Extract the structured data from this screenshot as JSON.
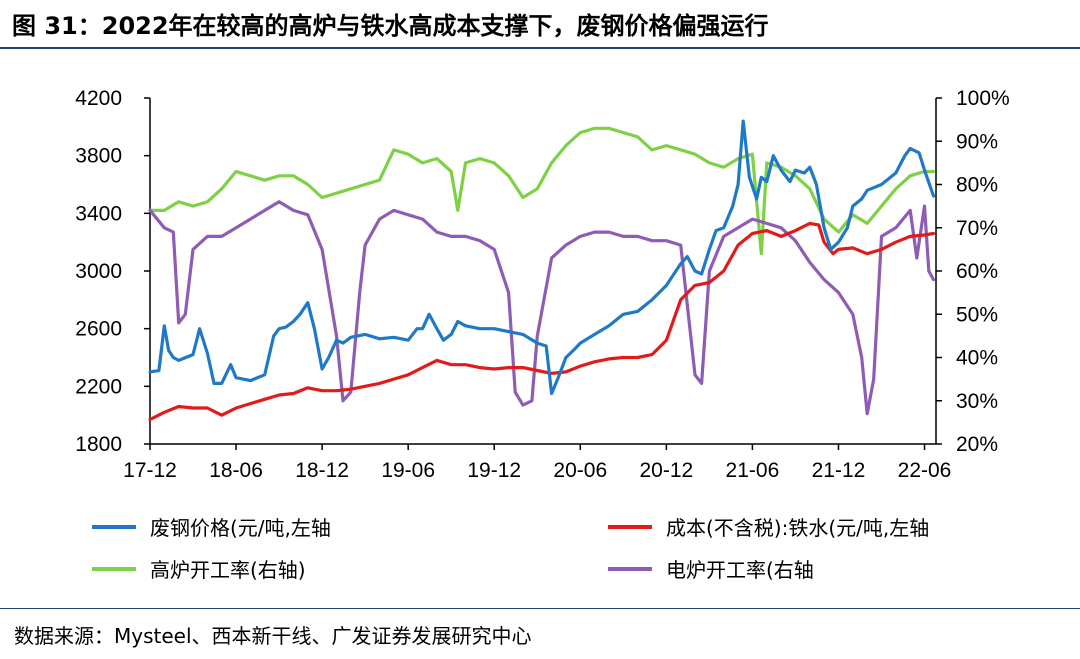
{
  "title": "图 31：2022年在较高的高炉与铁水高成本支撑下，废钢价格偏强运行",
  "source": "数据来源：Mysteel、西本新干线、广发证券发展研究中心",
  "chart_data": {
    "type": "line",
    "x_ticks": [
      "17-12",
      "18-06",
      "18-12",
      "19-06",
      "19-12",
      "20-06",
      "20-12",
      "21-06",
      "21-12",
      "22-06"
    ],
    "x_range": [
      "2017-12",
      "2022-07"
    ],
    "y_left": {
      "min": 1800,
      "max": 4200,
      "step": 400,
      "ticks": [
        "1800",
        "2200",
        "2600",
        "3000",
        "3400",
        "3800",
        "4200"
      ]
    },
    "y_right": {
      "min": 20,
      "max": 100,
      "step": 10,
      "ticks": [
        "20%",
        "30%",
        "40%",
        "50%",
        "60%",
        "70%",
        "80%",
        "90%",
        "100%"
      ]
    },
    "grid": false,
    "legend_position": "bottom",
    "series": [
      {
        "name": "废钢价格(元/吨,左轴",
        "axis": "left",
        "color": "#1f78c8",
        "points": [
          [
            "2017-12-01",
            2300
          ],
          [
            "2017-12-20",
            2310
          ],
          [
            "2018-01-01",
            2620
          ],
          [
            "2018-01-10",
            2450
          ],
          [
            "2018-01-20",
            2400
          ],
          [
            "2018-02-01",
            2380
          ],
          [
            "2018-03-01",
            2420
          ],
          [
            "2018-03-15",
            2600
          ],
          [
            "2018-04-01",
            2430
          ],
          [
            "2018-04-15",
            2220
          ],
          [
            "2018-05-01",
            2220
          ],
          [
            "2018-05-20",
            2350
          ],
          [
            "2018-06-01",
            2260
          ],
          [
            "2018-07-01",
            2240
          ],
          [
            "2018-08-01",
            2280
          ],
          [
            "2018-08-20",
            2550
          ],
          [
            "2018-09-01",
            2600
          ],
          [
            "2018-09-15",
            2610
          ],
          [
            "2018-10-01",
            2650
          ],
          [
            "2018-10-15",
            2700
          ],
          [
            "2018-11-01",
            2780
          ],
          [
            "2018-11-15",
            2600
          ],
          [
            "2018-12-01",
            2320
          ],
          [
            "2018-12-15",
            2400
          ],
          [
            "2019-01-01",
            2520
          ],
          [
            "2019-01-15",
            2500
          ],
          [
            "2019-02-01",
            2540
          ],
          [
            "2019-03-01",
            2560
          ],
          [
            "2019-04-01",
            2530
          ],
          [
            "2019-05-01",
            2540
          ],
          [
            "2019-06-01",
            2520
          ],
          [
            "2019-06-20",
            2600
          ],
          [
            "2019-07-01",
            2600
          ],
          [
            "2019-07-15",
            2700
          ],
          [
            "2019-08-01",
            2600
          ],
          [
            "2019-08-15",
            2520
          ],
          [
            "2019-09-01",
            2560
          ],
          [
            "2019-09-15",
            2650
          ],
          [
            "2019-10-01",
            2620
          ],
          [
            "2019-11-01",
            2600
          ],
          [
            "2019-12-01",
            2600
          ],
          [
            "2020-01-01",
            2580
          ],
          [
            "2020-02-01",
            2560
          ],
          [
            "2020-03-01",
            2500
          ],
          [
            "2020-03-20",
            2480
          ],
          [
            "2020-04-01",
            2150
          ],
          [
            "2020-04-15",
            2260
          ],
          [
            "2020-05-01",
            2400
          ],
          [
            "2020-05-20",
            2460
          ],
          [
            "2020-06-01",
            2500
          ],
          [
            "2020-07-01",
            2560
          ],
          [
            "2020-08-01",
            2620
          ],
          [
            "2020-09-01",
            2700
          ],
          [
            "2020-10-01",
            2720
          ],
          [
            "2020-11-01",
            2800
          ],
          [
            "2020-12-01",
            2900
          ],
          [
            "2021-01-01",
            3050
          ],
          [
            "2021-01-15",
            3100
          ],
          [
            "2021-02-01",
            3000
          ],
          [
            "2021-02-15",
            2980
          ],
          [
            "2021-03-01",
            3150
          ],
          [
            "2021-03-15",
            3280
          ],
          [
            "2021-04-01",
            3300
          ],
          [
            "2021-04-20",
            3450
          ],
          [
            "2021-05-01",
            3600
          ],
          [
            "2021-05-12",
            4040
          ],
          [
            "2021-05-25",
            3650
          ],
          [
            "2021-06-10",
            3500
          ],
          [
            "2021-06-20",
            3650
          ],
          [
            "2021-07-01",
            3620
          ],
          [
            "2021-07-15",
            3800
          ],
          [
            "2021-08-01",
            3700
          ],
          [
            "2021-08-20",
            3620
          ],
          [
            "2021-09-01",
            3700
          ],
          [
            "2021-09-20",
            3680
          ],
          [
            "2021-10-01",
            3720
          ],
          [
            "2021-10-15",
            3600
          ],
          [
            "2021-11-01",
            3300
          ],
          [
            "2021-11-15",
            3150
          ],
          [
            "2021-12-01",
            3200
          ],
          [
            "2021-12-20",
            3300
          ],
          [
            "2022-01-01",
            3450
          ],
          [
            "2022-01-20",
            3500
          ],
          [
            "2022-02-01",
            3560
          ],
          [
            "2022-03-01",
            3600
          ],
          [
            "2022-04-01",
            3680
          ],
          [
            "2022-04-20",
            3800
          ],
          [
            "2022-05-01",
            3850
          ],
          [
            "2022-05-20",
            3820
          ],
          [
            "2022-06-01",
            3700
          ],
          [
            "2022-06-20",
            3520
          ]
        ]
      },
      {
        "name": "成本(不含税):铁水(元/吨,左轴",
        "axis": "left",
        "color": "#e21a1a",
        "points": [
          [
            "2017-12-01",
            1970
          ],
          [
            "2018-01-01",
            2020
          ],
          [
            "2018-02-01",
            2060
          ],
          [
            "2018-03-01",
            2050
          ],
          [
            "2018-04-01",
            2050
          ],
          [
            "2018-05-01",
            2000
          ],
          [
            "2018-06-01",
            2050
          ],
          [
            "2018-07-01",
            2080
          ],
          [
            "2018-08-01",
            2110
          ],
          [
            "2018-09-01",
            2140
          ],
          [
            "2018-10-01",
            2150
          ],
          [
            "2018-11-01",
            2190
          ],
          [
            "2018-12-01",
            2170
          ],
          [
            "2019-01-01",
            2170
          ],
          [
            "2019-02-01",
            2180
          ],
          [
            "2019-03-01",
            2200
          ],
          [
            "2019-04-01",
            2220
          ],
          [
            "2019-05-01",
            2250
          ],
          [
            "2019-06-01",
            2280
          ],
          [
            "2019-07-01",
            2330
          ],
          [
            "2019-08-01",
            2380
          ],
          [
            "2019-09-01",
            2350
          ],
          [
            "2019-10-01",
            2350
          ],
          [
            "2019-11-01",
            2330
          ],
          [
            "2019-12-01",
            2320
          ],
          [
            "2020-01-01",
            2330
          ],
          [
            "2020-02-01",
            2330
          ],
          [
            "2020-03-01",
            2310
          ],
          [
            "2020-04-01",
            2290
          ],
          [
            "2020-05-01",
            2300
          ],
          [
            "2020-06-01",
            2340
          ],
          [
            "2020-07-01",
            2370
          ],
          [
            "2020-08-01",
            2390
          ],
          [
            "2020-09-01",
            2400
          ],
          [
            "2020-10-01",
            2400
          ],
          [
            "2020-11-01",
            2420
          ],
          [
            "2020-12-01",
            2520
          ],
          [
            "2021-01-01",
            2800
          ],
          [
            "2021-02-01",
            2900
          ],
          [
            "2021-03-01",
            2920
          ],
          [
            "2021-04-01",
            3000
          ],
          [
            "2021-05-01",
            3180
          ],
          [
            "2021-06-01",
            3260
          ],
          [
            "2021-07-01",
            3280
          ],
          [
            "2021-08-01",
            3240
          ],
          [
            "2021-09-01",
            3280
          ],
          [
            "2021-10-01",
            3330
          ],
          [
            "2021-10-20",
            3320
          ],
          [
            "2021-11-01",
            3200
          ],
          [
            "2021-11-20",
            3120
          ],
          [
            "2021-12-01",
            3150
          ],
          [
            "2022-01-01",
            3160
          ],
          [
            "2022-02-01",
            3120
          ],
          [
            "2022-03-01",
            3150
          ],
          [
            "2022-04-01",
            3200
          ],
          [
            "2022-05-01",
            3240
          ],
          [
            "2022-06-01",
            3250
          ],
          [
            "2022-06-20",
            3260
          ]
        ]
      },
      {
        "name": "高炉开工率(右轴)",
        "axis": "right",
        "color": "#7ed044",
        "points": [
          [
            "2017-12-01",
            74
          ],
          [
            "2018-01-01",
            74
          ],
          [
            "2018-02-01",
            76
          ],
          [
            "2018-03-01",
            75
          ],
          [
            "2018-04-01",
            76
          ],
          [
            "2018-05-01",
            79
          ],
          [
            "2018-06-01",
            83
          ],
          [
            "2018-07-01",
            82
          ],
          [
            "2018-08-01",
            81
          ],
          [
            "2018-09-01",
            82
          ],
          [
            "2018-10-01",
            82
          ],
          [
            "2018-11-01",
            80
          ],
          [
            "2018-12-01",
            77
          ],
          [
            "2019-01-01",
            78
          ],
          [
            "2019-02-01",
            79
          ],
          [
            "2019-03-01",
            80
          ],
          [
            "2019-04-01",
            81
          ],
          [
            "2019-05-01",
            88
          ],
          [
            "2019-06-01",
            87
          ],
          [
            "2019-07-01",
            85
          ],
          [
            "2019-08-01",
            86
          ],
          [
            "2019-09-01",
            83
          ],
          [
            "2019-09-15",
            74
          ],
          [
            "2019-10-01",
            85
          ],
          [
            "2019-11-01",
            86
          ],
          [
            "2019-12-01",
            85
          ],
          [
            "2020-01-01",
            82
          ],
          [
            "2020-02-01",
            77
          ],
          [
            "2020-03-01",
            79
          ],
          [
            "2020-04-01",
            85
          ],
          [
            "2020-05-01",
            89
          ],
          [
            "2020-06-01",
            92
          ],
          [
            "2020-07-01",
            93
          ],
          [
            "2020-08-01",
            93
          ],
          [
            "2020-09-01",
            92
          ],
          [
            "2020-10-01",
            91
          ],
          [
            "2020-11-01",
            88
          ],
          [
            "2020-12-01",
            89
          ],
          [
            "2021-01-01",
            88
          ],
          [
            "2021-02-01",
            87
          ],
          [
            "2021-03-01",
            85
          ],
          [
            "2021-04-01",
            84
          ],
          [
            "2021-05-01",
            86
          ],
          [
            "2021-06-01",
            87
          ],
          [
            "2021-06-20",
            64
          ],
          [
            "2021-07-01",
            85
          ],
          [
            "2021-08-01",
            84
          ],
          [
            "2021-09-01",
            82
          ],
          [
            "2021-10-01",
            79
          ],
          [
            "2021-11-01",
            72
          ],
          [
            "2021-12-01",
            69
          ],
          [
            "2022-01-01",
            73
          ],
          [
            "2022-02-01",
            71
          ],
          [
            "2022-03-01",
            75
          ],
          [
            "2022-04-01",
            79
          ],
          [
            "2022-05-01",
            82
          ],
          [
            "2022-06-01",
            83
          ],
          [
            "2022-06-20",
            83
          ]
        ]
      },
      {
        "name": "电炉开工率(右轴",
        "axis": "right",
        "color": "#8e5cb4",
        "points": [
          [
            "2017-12-01",
            74
          ],
          [
            "2018-01-01",
            70
          ],
          [
            "2018-01-20",
            69
          ],
          [
            "2018-02-01",
            48
          ],
          [
            "2018-02-15",
            50
          ],
          [
            "2018-03-01",
            65
          ],
          [
            "2018-04-01",
            68
          ],
          [
            "2018-05-01",
            68
          ],
          [
            "2018-06-01",
            70
          ],
          [
            "2018-07-01",
            72
          ],
          [
            "2018-08-01",
            74
          ],
          [
            "2018-09-01",
            76
          ],
          [
            "2018-10-01",
            74
          ],
          [
            "2018-11-01",
            73
          ],
          [
            "2018-12-01",
            65
          ],
          [
            "2019-01-01",
            45
          ],
          [
            "2019-01-15",
            30
          ],
          [
            "2019-02-01",
            32
          ],
          [
            "2019-02-20",
            55
          ],
          [
            "2019-03-01",
            66
          ],
          [
            "2019-04-01",
            72
          ],
          [
            "2019-05-01",
            74
          ],
          [
            "2019-06-01",
            73
          ],
          [
            "2019-07-01",
            72
          ],
          [
            "2019-08-01",
            69
          ],
          [
            "2019-09-01",
            68
          ],
          [
            "2019-10-01",
            68
          ],
          [
            "2019-11-01",
            67
          ],
          [
            "2019-12-01",
            65
          ],
          [
            "2020-01-01",
            55
          ],
          [
            "2020-01-15",
            32
          ],
          [
            "2020-02-01",
            29
          ],
          [
            "2020-02-20",
            30
          ],
          [
            "2020-03-01",
            45
          ],
          [
            "2020-04-01",
            63
          ],
          [
            "2020-05-01",
            66
          ],
          [
            "2020-06-01",
            68
          ],
          [
            "2020-07-01",
            69
          ],
          [
            "2020-08-01",
            69
          ],
          [
            "2020-09-01",
            68
          ],
          [
            "2020-10-01",
            68
          ],
          [
            "2020-11-01",
            67
          ],
          [
            "2020-12-01",
            67
          ],
          [
            "2021-01-01",
            66
          ],
          [
            "2021-02-01",
            36
          ],
          [
            "2021-02-15",
            34
          ],
          [
            "2021-03-01",
            60
          ],
          [
            "2021-04-01",
            68
          ],
          [
            "2021-05-01",
            70
          ],
          [
            "2021-06-01",
            72
          ],
          [
            "2021-07-01",
            71
          ],
          [
            "2021-08-01",
            70
          ],
          [
            "2021-09-01",
            67
          ],
          [
            "2021-10-01",
            62
          ],
          [
            "2021-11-01",
            58
          ],
          [
            "2021-12-01",
            55
          ],
          [
            "2022-01-01",
            50
          ],
          [
            "2022-01-20",
            40
          ],
          [
            "2022-02-01",
            27
          ],
          [
            "2022-02-15",
            35
          ],
          [
            "2022-03-01",
            68
          ],
          [
            "2022-04-01",
            70
          ],
          [
            "2022-05-01",
            74
          ],
          [
            "2022-05-15",
            63
          ],
          [
            "2022-06-01",
            75
          ],
          [
            "2022-06-10",
            60
          ],
          [
            "2022-06-20",
            58
          ]
        ]
      }
    ]
  }
}
